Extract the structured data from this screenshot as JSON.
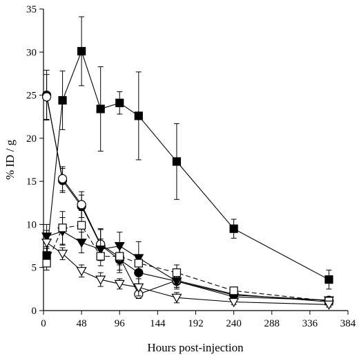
{
  "chart_data": {
    "type": "line",
    "title": "",
    "xlabel": "Hours post-injection",
    "ylabel": "% ID / g",
    "xlim": [
      0,
      384
    ],
    "ylim": [
      0,
      35
    ],
    "xticks": [
      0,
      48,
      96,
      144,
      192,
      240,
      288,
      336,
      384
    ],
    "yticks": [
      0,
      5,
      10,
      15,
      20,
      25,
      30,
      35
    ],
    "grid": false,
    "legend": "none",
    "series": [
      {
        "marker": "filled-square",
        "dash": "solid",
        "points": [
          {
            "x": 4,
            "y": 6.4,
            "err": 1.0
          },
          {
            "x": 24,
            "y": 24.4,
            "err": 3.4
          },
          {
            "x": 48,
            "y": 30.1,
            "err": 4.0
          },
          {
            "x": 72,
            "y": 23.4,
            "err": 4.9
          },
          {
            "x": 96,
            "y": 24.1,
            "err": 1.3
          },
          {
            "x": 120,
            "y": 22.6,
            "err": 5.1
          },
          {
            "x": 168,
            "y": 17.3,
            "err": 4.4
          },
          {
            "x": 240,
            "y": 9.5,
            "err": 1.1
          },
          {
            "x": 360,
            "y": 3.6,
            "err": 1.1
          }
        ]
      },
      {
        "marker": "filled-circle",
        "dash": "solid",
        "points": [
          {
            "x": 4,
            "y": 25.0,
            "err": 2.9
          },
          {
            "x": 24,
            "y": 15.1,
            "err": 1.4
          },
          {
            "x": 48,
            "y": 12.1,
            "err": 1.3
          },
          {
            "x": 72,
            "y": 7.6,
            "err": 1.8
          },
          {
            "x": 96,
            "y": 5.9,
            "err": 1.5
          },
          {
            "x": 120,
            "y": 4.4,
            "err": 1.4
          },
          {
            "x": 168,
            "y": 3.4,
            "err": 0.9
          },
          {
            "x": 240,
            "y": 1.8,
            "err": 0.4
          },
          {
            "x": 360,
            "y": 1.2,
            "err": 0.4
          }
        ]
      },
      {
        "marker": "open-circle",
        "dash": "solid",
        "points": [
          {
            "x": 4,
            "y": 24.8,
            "err": 2.6
          },
          {
            "x": 24,
            "y": 15.3,
            "err": 1.4
          },
          {
            "x": 48,
            "y": 12.3,
            "err": 1.5
          },
          {
            "x": 72,
            "y": 7.7,
            "err": 1.8
          },
          {
            "x": 96,
            "y": 6.2,
            "err": 1.5
          },
          {
            "x": 120,
            "y": 1.9,
            "err": 0.5
          },
          {
            "x": 168,
            "y": 3.5,
            "err": 0.8
          },
          {
            "x": 240,
            "y": 1.9,
            "err": 0.4
          },
          {
            "x": 360,
            "y": 1.0,
            "err": 0.4
          }
        ]
      },
      {
        "marker": "filled-triangle-down",
        "dash": "solid",
        "points": [
          {
            "x": 4,
            "y": 8.6,
            "err": 1.4
          },
          {
            "x": 24,
            "y": 9.2,
            "err": 1.6
          },
          {
            "x": 48,
            "y": 7.9,
            "err": 1.2
          },
          {
            "x": 72,
            "y": 7.1,
            "err": 1.2
          },
          {
            "x": 96,
            "y": 7.5,
            "err": 1.6
          },
          {
            "x": 120,
            "y": 6.1,
            "err": 1.9
          },
          {
            "x": 168,
            "y": 3.4,
            "err": 0.7
          },
          {
            "x": 240,
            "y": 1.6,
            "err": 0.5
          },
          {
            "x": 360,
            "y": 1.2,
            "err": 0.4
          }
        ]
      },
      {
        "marker": "open-square",
        "dash": "dashed",
        "points": [
          {
            "x": 4,
            "y": 5.5,
            "err": 0.8
          },
          {
            "x": 24,
            "y": 9.6,
            "err": 1.9
          },
          {
            "x": 48,
            "y": 9.9,
            "err": 1.7
          },
          {
            "x": 72,
            "y": 6.3,
            "err": 1.1
          },
          {
            "x": 96,
            "y": 6.3,
            "err": 1.0
          },
          {
            "x": 120,
            "y": 5.5,
            "err": 0.8
          },
          {
            "x": 168,
            "y": 4.4,
            "err": 0.9
          },
          {
            "x": 240,
            "y": 2.3,
            "err": 0.4
          },
          {
            "x": 360,
            "y": 1.1,
            "err": 0.4
          }
        ]
      },
      {
        "marker": "open-triangle-down",
        "dash": "solid",
        "points": [
          {
            "x": 4,
            "y": 7.9,
            "err": 1.4
          },
          {
            "x": 24,
            "y": 6.6,
            "err": 0.7
          },
          {
            "x": 48,
            "y": 4.6,
            "err": 0.7
          },
          {
            "x": 72,
            "y": 3.6,
            "err": 0.8
          },
          {
            "x": 96,
            "y": 3.1,
            "err": 0.6
          },
          {
            "x": 120,
            "y": 2.7,
            "err": 1.0
          },
          {
            "x": 168,
            "y": 1.5,
            "err": 0.6
          },
          {
            "x": 240,
            "y": 1.0,
            "err": 0.3
          },
          {
            "x": 360,
            "y": 0.7,
            "err": 0.3
          }
        ]
      }
    ]
  }
}
